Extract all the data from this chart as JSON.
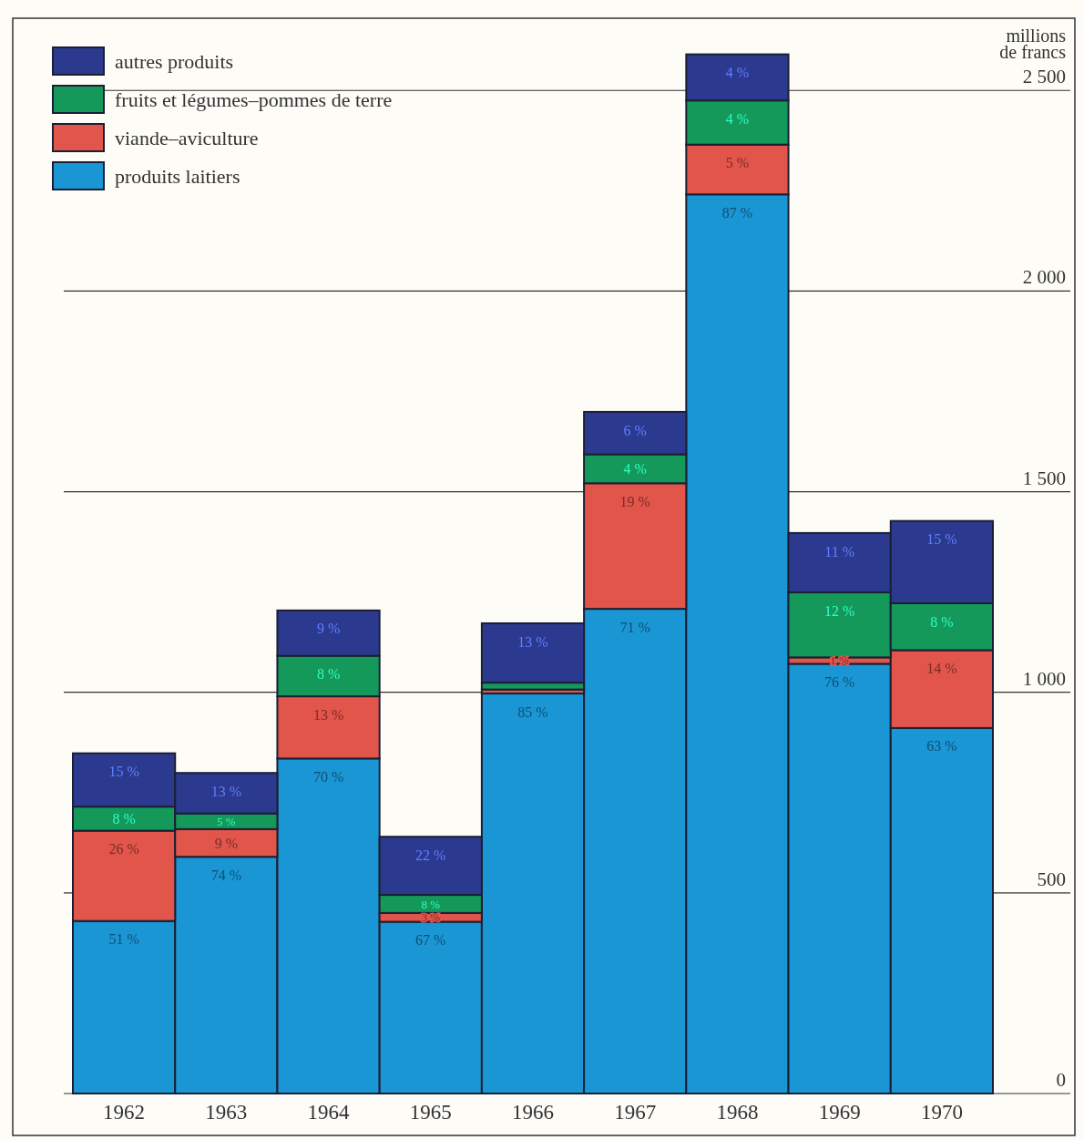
{
  "chart_data": {
    "type": "bar",
    "stacked": true,
    "ylabel": "millions\nde francs",
    "categories": [
      "1962",
      "1963",
      "1964",
      "1965",
      "1966",
      "1967",
      "1968",
      "1969",
      "1970"
    ],
    "ylim": [
      0,
      2680
    ],
    "yticks": [
      0,
      500,
      {
        "value": 1000,
        "label": "1 000"
      },
      {
        "value": 1500,
        "label": "1 500"
      },
      {
        "value": 2000,
        "label": "2 000"
      },
      {
        "value": 2500,
        "label": "2 500"
      }
    ],
    "grid": "y",
    "legend": "top left",
    "series": [
      {
        "name": "produits laitiers",
        "color": "#1a96d4",
        "values": [
          430,
          590,
          835,
          428,
          997,
          1208,
          2241,
          1071,
          911
        ]
      },
      {
        "name": "viande–aviculture",
        "color": "#e2554a",
        "values": [
          225,
          69,
          155,
          22,
          10,
          313,
          124,
          16,
          194
        ]
      },
      {
        "name": "fruits et légumes–pommes de terre",
        "color": "#14995a",
        "values": [
          60,
          39,
          101,
          45,
          17,
          72,
          110,
          162,
          117
        ]
      },
      {
        "name": "autres produits",
        "color": "#2b3a8e",
        "values": [
          133,
          101,
          113,
          145,
          148,
          106,
          115,
          148,
          205
        ]
      }
    ],
    "annotations": [
      {
        "text": "51 %",
        "x": "1962",
        "y": 430
      },
      {
        "text": "74 %",
        "x": "1963",
        "y": 590
      },
      {
        "text": "70 %",
        "x": "1964",
        "y": 835
      },
      {
        "text": "67 %",
        "x": "1965",
        "y": 428
      },
      {
        "text": "85 %",
        "x": "1966",
        "y": 997
      },
      {
        "text": "71 %",
        "x": "1967",
        "y": 1208
      },
      {
        "text": "87 %",
        "x": "1968",
        "y": 2241
      },
      {
        "text": "76 %",
        "x": "1969",
        "y": 1071
      },
      {
        "text": "63 %",
        "x": "1970",
        "y": 911
      },
      {
        "text": "26 %",
        "x": "1962",
        "y": 655
      },
      {
        "text": "9 %",
        "x": "1963",
        "y": 659
      },
      {
        "text": "13 %",
        "x": "1964",
        "y": 990
      },
      {
        "text": "3 %",
        "x": "1965",
        "y": 450
      },
      {
        "text": "19 %",
        "x": "1967",
        "y": 1521
      },
      {
        "text": "5 %",
        "x": "1968",
        "y": 2365
      },
      {
        "text": "1 %",
        "x": "1969",
        "y": 1087
      },
      {
        "text": "14 %",
        "x": "1970",
        "y": 1105
      },
      {
        "text": "8 %",
        "x": "1962",
        "y": 715
      },
      {
        "text": "5 %",
        "x": "1963",
        "y": 698
      },
      {
        "text": "8 %",
        "x": "1964",
        "y": 1091
      },
      {
        "text": "8 %",
        "x": "1965",
        "y": 495
      },
      {
        "text": "4 %",
        "x": "1967",
        "y": 1593
      },
      {
        "text": "4 %",
        "x": "1968",
        "y": 2475
      },
      {
        "text": "12 %",
        "x": "1969",
        "y": 1249
      },
      {
        "text": "8 %",
        "x": "1970",
        "y": 1222
      },
      {
        "text": "15 %",
        "x": "1962",
        "y": 848
      },
      {
        "text": "13 %",
        "x": "1963",
        "y": 799
      },
      {
        "text": "9 %",
        "x": "1964",
        "y": 1204
      },
      {
        "text": "22 %",
        "x": "1965",
        "y": 640
      },
      {
        "text": "13 %",
        "x": "1966",
        "y": 1172
      },
      {
        "text": "6 %",
        "x": "1967",
        "y": 1699
      },
      {
        "text": "4 %",
        "x": "1968",
        "y": 2590
      },
      {
        "text": "11 %",
        "x": "1969",
        "y": 1397
      },
      {
        "text": "15 %",
        "x": "1970",
        "y": 1427
      }
    ]
  }
}
